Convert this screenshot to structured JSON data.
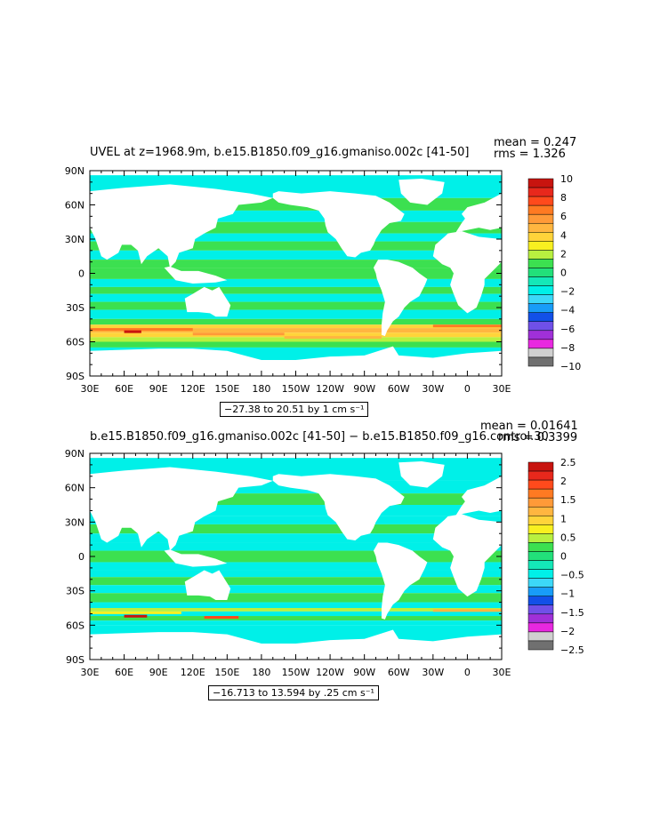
{
  "chart_data": [
    {
      "type": "heatmap",
      "title": "UVEL at z=1968.9m, b.e15.B1850.f09_g16.gmaniso.002c [41-50]",
      "mean_label": "mean = 0.247",
      "rms_label": "rms = 1.326",
      "x_tick_labels": [
        "30E",
        "60E",
        "90E",
        "120E",
        "150E",
        "180",
        "150W",
        "120W",
        "90W",
        "60W",
        "30W",
        "0",
        "30E"
      ],
      "y_tick_labels": [
        "90N",
        "60N",
        "30N",
        "0",
        "30S",
        "60S",
        "90S"
      ],
      "xlim": [
        30,
        390
      ],
      "ylim": [
        -90,
        90
      ],
      "range_label": "−27.38 to 20.51 by 1 cm s⁻¹",
      "colorbar": {
        "labels": [
          "10",
          "8",
          "6",
          "4",
          "2",
          "0",
          "−2",
          "−4",
          "−6",
          "−8",
          "−10"
        ],
        "colors": [
          "#c8140f",
          "#e8281c",
          "#ff4a1c",
          "#ff7a22",
          "#ff9a38",
          "#ffb640",
          "#ffd43a",
          "#f8f020",
          "#b8f040",
          "#3ce050",
          "#22e07a",
          "#14e8b8",
          "#00f0e8",
          "#3cd8f8",
          "#189cf8",
          "#1250e8",
          "#7050e8",
          "#a030d8",
          "#e828e0",
          "#d0d0d0",
          "#707070"
        ]
      }
    },
    {
      "type": "heatmap",
      "title": "b.e15.B1850.f09_g16.gmaniso.002c [41-50] − b.e15.B1850.f09_g16.control.30",
      "mean_label": "mean = 0.01641",
      "rms_label": "rms = 0.3399",
      "x_tick_labels": [
        "30E",
        "60E",
        "90E",
        "120E",
        "150E",
        "180",
        "150W",
        "120W",
        "90W",
        "60W",
        "30W",
        "0",
        "30E"
      ],
      "y_tick_labels": [
        "90N",
        "60N",
        "30N",
        "0",
        "30S",
        "60S",
        "90S"
      ],
      "xlim": [
        30,
        390
      ],
      "ylim": [
        -90,
        90
      ],
      "range_label": "−16.713 to 13.594 by .25 cm s⁻¹",
      "colorbar": {
        "labels": [
          "2.5",
          "2",
          "1.5",
          "1",
          "0.5",
          "0",
          "−0.5",
          "−1",
          "−1.5",
          "−2",
          "−2.5"
        ],
        "colors": [
          "#c8140f",
          "#e8281c",
          "#ff4a1c",
          "#ff7a22",
          "#ff9a38",
          "#ffb640",
          "#ffd43a",
          "#f8f020",
          "#b8f040",
          "#3ce050",
          "#22e07a",
          "#14e8b8",
          "#00f0e8",
          "#3cd8f8",
          "#189cf8",
          "#1250e8",
          "#7050e8",
          "#a030d8",
          "#e828e0",
          "#d0d0d0",
          "#707070"
        ]
      }
    }
  ]
}
